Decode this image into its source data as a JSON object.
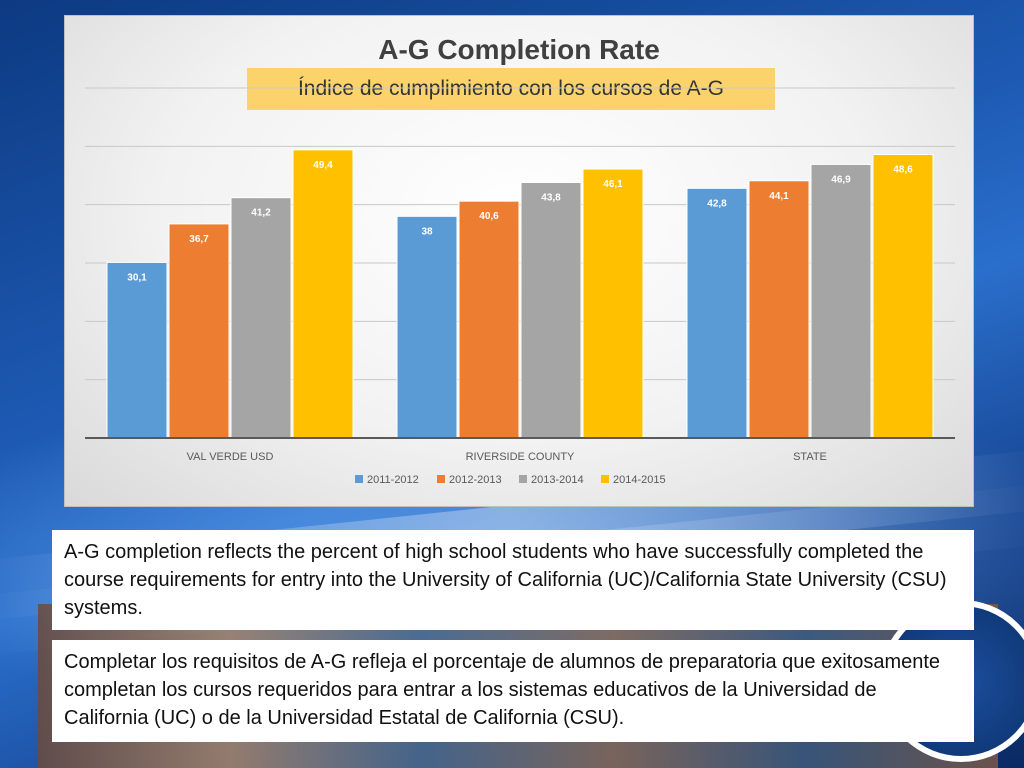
{
  "slide": {
    "note_en": "A-G completion reflects the percent of high school students who have successfully completed the course requirements for entry into the University of California (UC)/California State University (CSU) systems.",
    "note_es": "Completar los requisitos de A-G refleja el porcentaje de alumnos de preparatoria que exitosamente completan los cursos requeridos para entrar a los sistemas educativos de la Universidad de California (UC) o de la Universidad Estatal de California (CSU)."
  },
  "chart_data": {
    "type": "bar",
    "title": "A-G Completion Rate",
    "subtitle": "Índice de cumplimiento con los cursos de A-G",
    "xlabel": "",
    "ylabel": "",
    "categories": [
      "VAL VERDE USD",
      "RIVERSIDE COUNTY",
      "STATE"
    ],
    "series": [
      {
        "name": "2011-2012",
        "color": "#5b9bd5",
        "values": [
          30.1,
          38,
          42.8
        ],
        "labels": [
          "30,1",
          "38",
          "42,8"
        ]
      },
      {
        "name": "2012-2013",
        "color": "#ed7d31",
        "values": [
          36.7,
          40.6,
          44.1
        ],
        "labels": [
          "36,7",
          "40,6",
          "44,1"
        ]
      },
      {
        "name": "2013-2014",
        "color": "#a5a5a5",
        "values": [
          41.2,
          43.8,
          46.9
        ],
        "labels": [
          "41,2",
          "43,8",
          "46,9"
        ]
      },
      {
        "name": "2014-2015",
        "color": "#ffc000",
        "values": [
          49.4,
          46.1,
          48.6
        ],
        "labels": [
          "49,4",
          "46,1",
          "48,6"
        ]
      }
    ],
    "ylim": [
      0,
      60
    ],
    "y_tick_step": 10,
    "grid": true,
    "legend": "bottom",
    "data_label_position": "inside-top"
  }
}
